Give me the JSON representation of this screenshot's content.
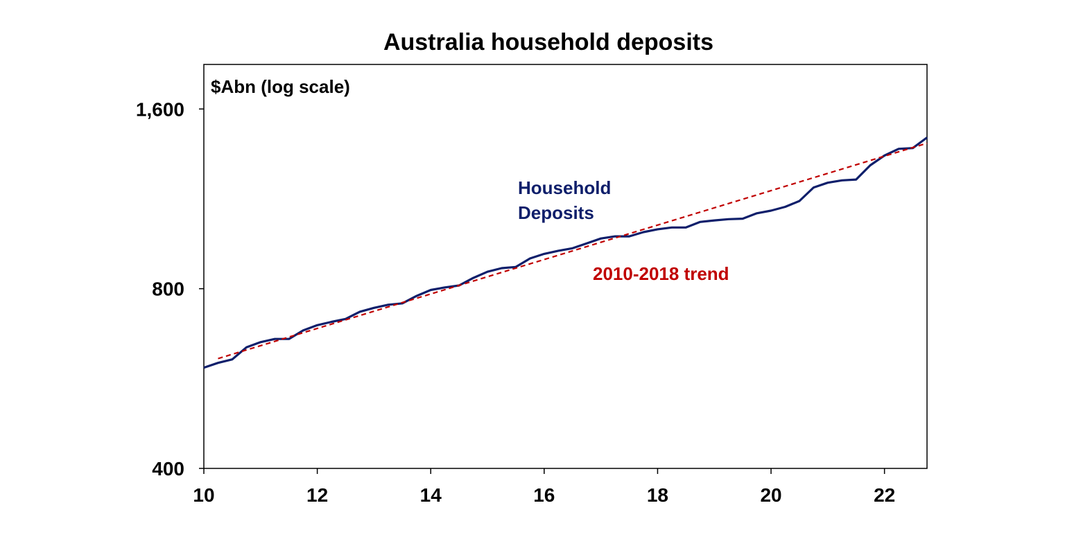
{
  "chart_data": {
    "type": "line",
    "title": "Australia household deposits",
    "unit_label": "$Abn (log scale)",
    "y_scale": "log",
    "ylim": [
      400,
      1900
    ],
    "xlim": [
      2010,
      2022.75
    ],
    "x_ticks": [
      {
        "value": 2010,
        "label": "10"
      },
      {
        "value": 2012,
        "label": "12"
      },
      {
        "value": 2014,
        "label": "14"
      },
      {
        "value": 2016,
        "label": "16"
      },
      {
        "value": 2018,
        "label": "18"
      },
      {
        "value": 2020,
        "label": "20"
      },
      {
        "value": 2022,
        "label": "22"
      }
    ],
    "y_ticks": [
      {
        "value": 400,
        "label": "400"
      },
      {
        "value": 800,
        "label": "800"
      },
      {
        "value": 1600,
        "label": "1,600"
      }
    ],
    "grid": false,
    "legend": "none",
    "series": [
      {
        "name": "Household Deposits",
        "label": "Household\nDeposits",
        "color": "#0f1f6b",
        "style": "solid",
        "points": [
          [
            2010.0,
            590
          ],
          [
            2010.25,
            601
          ],
          [
            2010.5,
            609
          ],
          [
            2010.75,
            638
          ],
          [
            2011.0,
            651
          ],
          [
            2011.25,
            659
          ],
          [
            2011.5,
            659
          ],
          [
            2011.75,
            681
          ],
          [
            2012.0,
            695
          ],
          [
            2012.25,
            704
          ],
          [
            2012.5,
            712
          ],
          [
            2012.75,
            732
          ],
          [
            2013.0,
            743
          ],
          [
            2013.25,
            752
          ],
          [
            2013.5,
            756
          ],
          [
            2013.75,
            778
          ],
          [
            2014.0,
            796
          ],
          [
            2014.25,
            804
          ],
          [
            2014.5,
            810
          ],
          [
            2014.75,
            834
          ],
          [
            2015.0,
            854
          ],
          [
            2015.25,
            866
          ],
          [
            2015.5,
            870
          ],
          [
            2015.75,
            899
          ],
          [
            2016.0,
            915
          ],
          [
            2016.25,
            926
          ],
          [
            2016.5,
            935
          ],
          [
            2016.75,
            953
          ],
          [
            2017.0,
            971
          ],
          [
            2017.25,
            979
          ],
          [
            2017.5,
            979
          ],
          [
            2017.75,
            995
          ],
          [
            2018.0,
            1006
          ],
          [
            2018.25,
            1013
          ],
          [
            2018.5,
            1013
          ],
          [
            2018.75,
            1035
          ],
          [
            2019.0,
            1041
          ],
          [
            2019.25,
            1046
          ],
          [
            2019.5,
            1048
          ],
          [
            2019.75,
            1070
          ],
          [
            2020.0,
            1081
          ],
          [
            2020.25,
            1097
          ],
          [
            2020.5,
            1122
          ],
          [
            2020.75,
            1182
          ],
          [
            2021.0,
            1204
          ],
          [
            2021.25,
            1215
          ],
          [
            2021.5,
            1219
          ],
          [
            2021.75,
            1288
          ],
          [
            2022.0,
            1337
          ],
          [
            2022.25,
            1372
          ],
          [
            2022.5,
            1376
          ],
          [
            2022.75,
            1433
          ]
        ]
      },
      {
        "name": "2010-2018 trend",
        "label": "2010-2018 trend",
        "color": "#c00000",
        "style": "dashed",
        "points": [
          [
            2010.25,
            611
          ],
          [
            2022.75,
            1402
          ]
        ]
      }
    ]
  }
}
